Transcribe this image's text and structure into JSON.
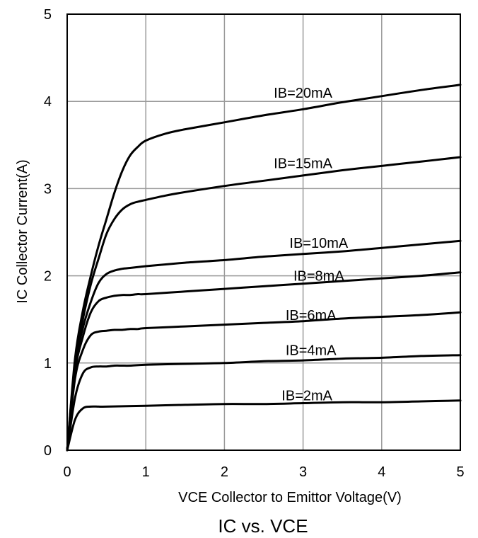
{
  "chart_data": {
    "type": "line",
    "title": "IC vs. VCE",
    "xlabel": "VCE Collector  to Emittor Voltage(V)",
    "ylabel": "IC Collector Current(A)",
    "xlim": [
      0,
      5
    ],
    "ylim": [
      0,
      5
    ],
    "xticks": [
      "0",
      "1",
      "2",
      "3",
      "4",
      "5"
    ],
    "yticks": [
      "0",
      "1",
      "2",
      "3",
      "4",
      "5"
    ],
    "grid": true,
    "series": [
      {
        "name": "IB=20mA",
        "x": [
          0,
          0.1,
          0.2,
          0.3,
          0.4,
          0.5,
          0.6,
          0.7,
          0.8,
          0.9,
          1.0,
          1.25,
          1.5,
          2.0,
          2.5,
          3.0,
          3.5,
          4.0,
          4.5,
          5.0
        ],
        "y": [
          0,
          1.05,
          1.6,
          2.0,
          2.35,
          2.65,
          2.95,
          3.2,
          3.38,
          3.48,
          3.55,
          3.63,
          3.68,
          3.76,
          3.84,
          3.91,
          3.99,
          4.06,
          4.13,
          4.19
        ]
      },
      {
        "name": "IB=15mA",
        "x": [
          0,
          0.1,
          0.2,
          0.3,
          0.4,
          0.5,
          0.6,
          0.7,
          0.8,
          0.9,
          1.0,
          1.25,
          1.5,
          2.0,
          2.5,
          3.0,
          3.5,
          4.0,
          4.5,
          5.0
        ],
        "y": [
          0,
          1.0,
          1.5,
          1.9,
          2.2,
          2.48,
          2.65,
          2.76,
          2.82,
          2.85,
          2.87,
          2.92,
          2.96,
          3.03,
          3.09,
          3.15,
          3.21,
          3.26,
          3.31,
          3.36
        ]
      },
      {
        "name": "IB=10mA",
        "x": [
          0,
          0.1,
          0.2,
          0.3,
          0.4,
          0.5,
          0.6,
          0.7,
          0.8,
          0.9,
          1.0,
          1.5,
          2.0,
          2.5,
          3.0,
          3.5,
          4.0,
          4.5,
          5.0
        ],
        "y": [
          0,
          0.95,
          1.4,
          1.7,
          1.92,
          2.02,
          2.06,
          2.08,
          2.09,
          2.1,
          2.11,
          2.15,
          2.18,
          2.22,
          2.25,
          2.28,
          2.32,
          2.36,
          2.4
        ]
      },
      {
        "name": "IB=8mA",
        "x": [
          0,
          0.1,
          0.2,
          0.3,
          0.4,
          0.5,
          0.6,
          0.7,
          0.8,
          0.9,
          1.0,
          1.5,
          2.0,
          2.5,
          3.0,
          3.5,
          4.0,
          4.5,
          5.0
        ],
        "y": [
          0,
          0.9,
          1.3,
          1.58,
          1.71,
          1.75,
          1.77,
          1.78,
          1.78,
          1.79,
          1.79,
          1.82,
          1.85,
          1.88,
          1.91,
          1.94,
          1.97,
          2.0,
          2.04
        ]
      },
      {
        "name": "IB=6mA",
        "x": [
          0,
          0.1,
          0.2,
          0.3,
          0.4,
          0.5,
          0.6,
          0.7,
          0.8,
          0.9,
          1.0,
          1.5,
          2.0,
          2.5,
          3.0,
          3.5,
          4.0,
          4.5,
          5.0
        ],
        "y": [
          0,
          0.82,
          1.15,
          1.32,
          1.36,
          1.37,
          1.38,
          1.38,
          1.39,
          1.39,
          1.4,
          1.42,
          1.44,
          1.46,
          1.48,
          1.51,
          1.53,
          1.55,
          1.58
        ]
      },
      {
        "name": "IB=4mA",
        "x": [
          0,
          0.1,
          0.2,
          0.3,
          0.4,
          0.5,
          0.6,
          0.7,
          0.8,
          1.0,
          1.5,
          2.0,
          2.5,
          3.0,
          3.5,
          4.0,
          4.5,
          5.0
        ],
        "y": [
          0,
          0.6,
          0.88,
          0.95,
          0.96,
          0.96,
          0.97,
          0.97,
          0.97,
          0.98,
          0.99,
          1.0,
          1.02,
          1.03,
          1.05,
          1.06,
          1.08,
          1.09
        ]
      },
      {
        "name": "IB=2mA",
        "x": [
          0,
          0.1,
          0.2,
          0.3,
          0.4,
          0.5,
          1.0,
          1.5,
          2.0,
          2.5,
          3.0,
          3.5,
          4.0,
          4.5,
          5.0
        ],
        "y": [
          0,
          0.35,
          0.48,
          0.5,
          0.5,
          0.5,
          0.51,
          0.52,
          0.53,
          0.53,
          0.54,
          0.55,
          0.55,
          0.56,
          0.57
        ]
      }
    ],
    "annotations": [
      {
        "text": "IB=20mA",
        "x": 3.0,
        "y": 4.1
      },
      {
        "text": "IB=15mA",
        "x": 3.0,
        "y": 3.29
      },
      {
        "text": "IB=10mA",
        "x": 3.2,
        "y": 2.38
      },
      {
        "text": "IB=8mA",
        "x": 3.2,
        "y": 2.0
      },
      {
        "text": "IB=6mA",
        "x": 3.1,
        "y": 1.55
      },
      {
        "text": "IB=4mA",
        "x": 3.1,
        "y": 1.15
      },
      {
        "text": "IB=2mA",
        "x": 3.05,
        "y": 0.63
      }
    ]
  }
}
